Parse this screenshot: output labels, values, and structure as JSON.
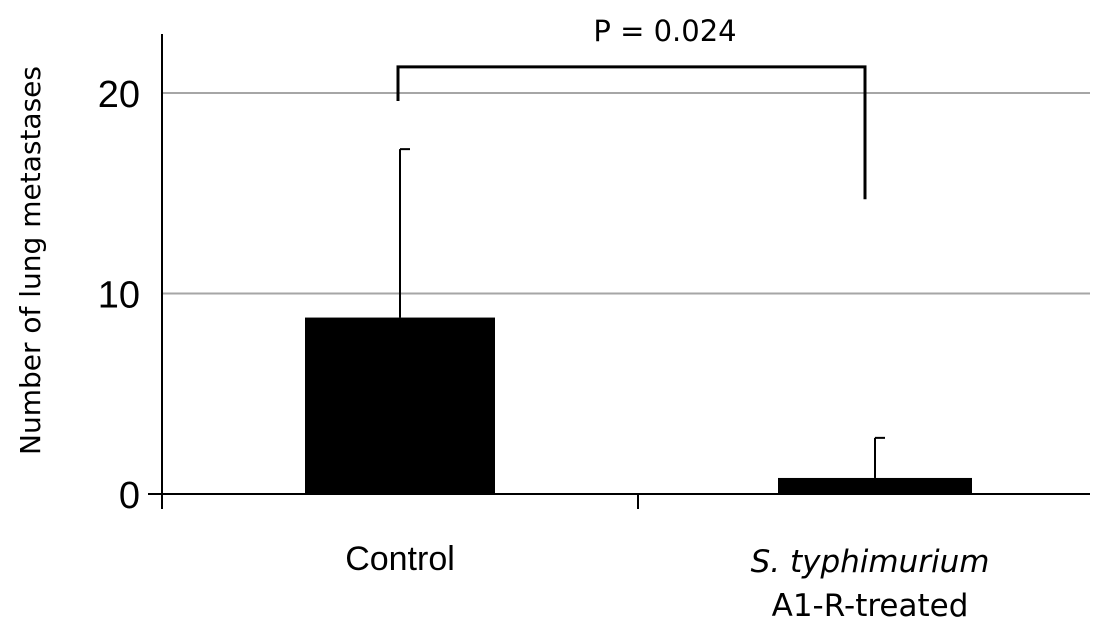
{
  "chart_data": {
    "type": "bar",
    "ylabel": "Number of lung metastases",
    "ylim": [
      0,
      23
    ],
    "yticks": [
      0,
      10,
      20
    ],
    "grid": true,
    "categories": [
      {
        "line1": "Control",
        "line2": ""
      },
      {
        "line1": "S. typhimurium",
        "line2": "A1-R-treated"
      }
    ],
    "values": [
      8.8,
      0.8
    ],
    "error_upper": [
      8.4,
      2.0
    ],
    "colors": {
      "bar": "#000000",
      "grid": "#a6a6a6",
      "axis": "#000000"
    },
    "annotation": {
      "text": "P = 0.024",
      "bracket_y": 21.3,
      "left_drop_to": 19.6,
      "right_drop_to": 14.7
    }
  }
}
